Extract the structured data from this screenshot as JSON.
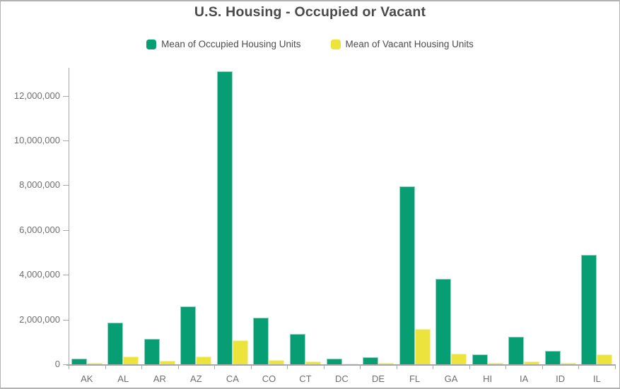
{
  "chart_data": {
    "type": "bar",
    "title": "U.S. Housing - Occupied or Vacant",
    "categories": [
      "AK",
      "AL",
      "AR",
      "AZ",
      "CA",
      "CO",
      "CT",
      "DC",
      "DE",
      "FL",
      "GA",
      "HI",
      "IA",
      "ID",
      "IL"
    ],
    "series": [
      {
        "name": "Mean of Occupied Housing Units",
        "color": "#089e74",
        "values": [
          240000,
          1850000,
          1140000,
          2600000,
          13100000,
          2080000,
          1360000,
          240000,
          330000,
          7950000,
          3830000,
          440000,
          1220000,
          610000,
          4880000
        ]
      },
      {
        "name": "Mean of Vacant Housing Units",
        "color": "#ece33c",
        "values": [
          60000,
          340000,
          170000,
          360000,
          1070000,
          200000,
          120000,
          30000,
          50000,
          1590000,
          470000,
          70000,
          120000,
          60000,
          450000
        ]
      }
    ],
    "xlabel": "",
    "ylabel": "",
    "ylim": [
      0,
      13250000
    ],
    "y_tick_values": [
      0,
      2000000,
      4000000,
      6000000,
      8000000,
      10000000,
      12000000
    ],
    "y_tick_labels": [
      "0",
      "2,000,000",
      "4,000,000",
      "6,000,000",
      "8,000,000",
      "10,000,000",
      "12,000,000"
    ],
    "grid": false,
    "legend_position": "top"
  },
  "colors": {
    "occupied": "#089e74",
    "vacant": "#ece33c",
    "axis_line": "#a9a9a9",
    "axis_text": "#6e6e6e",
    "title_text": "#4a4a4a"
  }
}
